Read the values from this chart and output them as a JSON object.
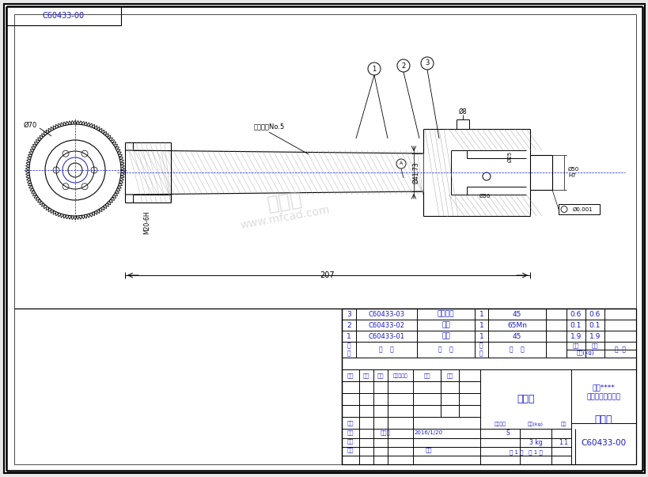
{
  "bg_color": "#e8e8e8",
  "drawing_bg": "#ffffff",
  "lc": "#000000",
  "bc": "#1a1acd",
  "title_text": "C60433-00",
  "part_name": "车夹具",
  "drawing_type": "装配图",
  "company_line1": "北京****",
  "company_line2": "科技有限责任公司",
  "bom_rows": [
    {
      "seq": "3",
      "code": "C60433-03",
      "name": "锁紧螺母",
      "qty": "1",
      "material": "45",
      "w1": "0.6",
      "w2": "0.6"
    },
    {
      "seq": "2",
      "code": "C60433-02",
      "name": "夹头",
      "qty": "1",
      "material": "65Mn",
      "w1": "0.1",
      "w2": "0.1"
    },
    {
      "seq": "1",
      "code": "C60433-01",
      "name": "锥柄",
      "qty": "1",
      "material": "45",
      "w1": "1.9",
      "w2": "1.9"
    }
  ],
  "morse_note": "莫氏圆锥No.5",
  "watermark1": "沐风网",
  "watermark2": "www.mfcad.com",
  "scale": "1:1",
  "weight": "3 kg",
  "date": "2016/1/20",
  "checker": "张丹成",
  "sheet_s": "S",
  "sheet_num": "1",
  "sheet_total": "1",
  "dim_207": "207",
  "dim_phi70": "Ø70",
  "dim_m20": "M20-6H",
  "dim_phi4173": "Ø41.73",
  "dim_phi8": "Ø8",
  "dim_phi36": "Ø36",
  "dim_phi25": "Ø25",
  "dim_phi50": "Ø50",
  "dim_H7": "H7",
  "tol_text": "Ø0.001",
  "doc_num": "C60433-00"
}
